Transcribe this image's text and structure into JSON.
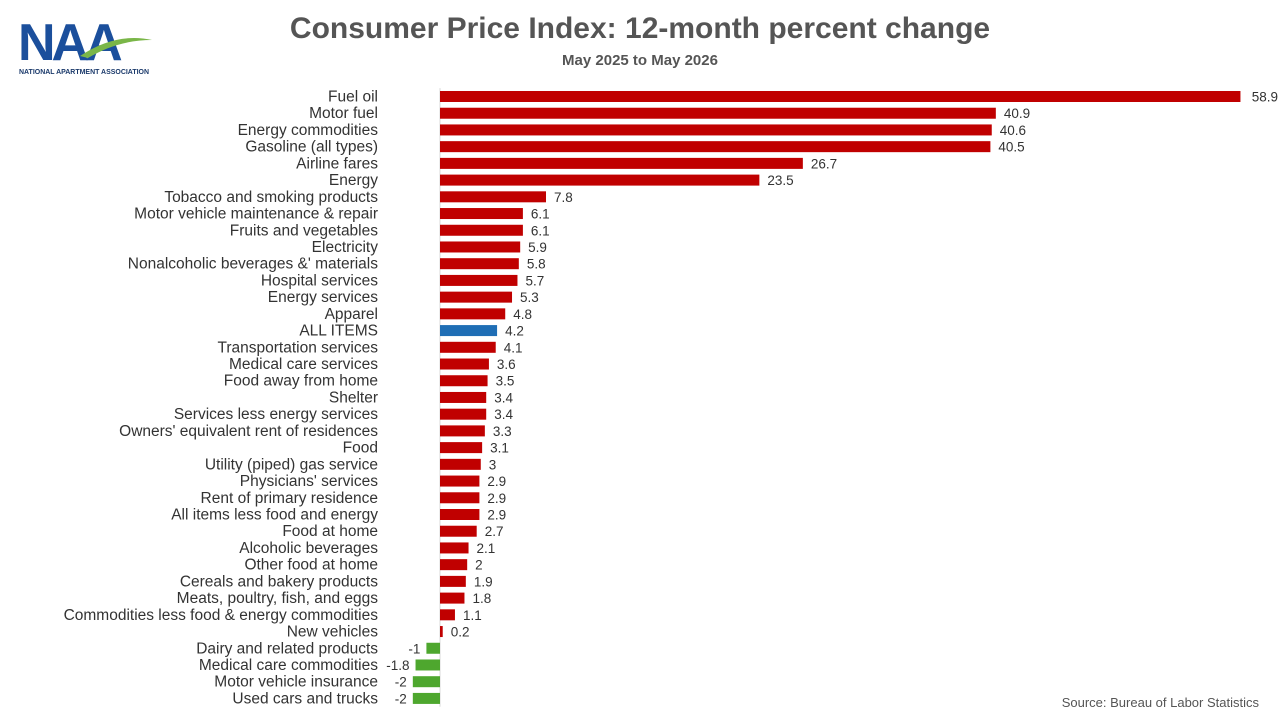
{
  "logo": {
    "text": "NAA",
    "caption": "NATIONAL APARTMENT ASSOCIATION"
  },
  "header": {
    "title": "Consumer Price Index: 12-month percent change",
    "subtitle": "May 2025 to May 2026"
  },
  "footer": {
    "source": "Source: Bureau of Labor Statistics"
  },
  "colors": {
    "positive": "#C00000",
    "highlight": "#1F6EB5",
    "negative": "#4EA72E",
    "text": "#333333"
  },
  "chart_data": {
    "type": "bar",
    "orientation": "horizontal",
    "highlight": "ALL ITEMS",
    "categories": [
      "Fuel oil",
      "Motor fuel",
      "Energy commodities",
      "Gasoline (all types)",
      "Airline fares",
      "Energy",
      "Tobacco and smoking products",
      "Motor vehicle maintenance & repair",
      "Fruits and vegetables",
      "Electricity",
      "Nonalcoholic beverages &' materials",
      "Hospital services",
      "Energy services",
      "Apparel",
      "ALL ITEMS",
      "Transportation services",
      "Medical care services",
      "Food away from home",
      "Shelter",
      "Services less energy services",
      "Owners' equivalent rent of residences",
      "Food",
      "Utility (piped) gas service",
      "Physicians' services",
      "Rent of primary residence",
      "All items less food and energy",
      "Food at home",
      "Alcoholic beverages",
      "Other food at home",
      "Cereals and bakery products",
      "Meats, poultry, fish, and eggs",
      "Commodities less food & energy commodities",
      "New vehicles",
      "Dairy and related products",
      "Medical care commodities",
      "Motor vehicle insurance",
      "Used cars and trucks"
    ],
    "values": [
      58.9,
      40.9,
      40.6,
      40.5,
      26.7,
      23.5,
      7.8,
      6.1,
      6.1,
      5.9,
      5.8,
      5.7,
      5.3,
      4.8,
      4.2,
      4.1,
      3.6,
      3.5,
      3.4,
      3.4,
      3.3,
      3.1,
      3,
      2.9,
      2.9,
      2.9,
      2.7,
      2.1,
      2,
      1.9,
      1.8,
      1.1,
      0.2,
      -1,
      -1.8,
      -2,
      -2
    ],
    "xlim": [
      -2,
      58.9
    ],
    "grid": false,
    "legend": "none"
  }
}
